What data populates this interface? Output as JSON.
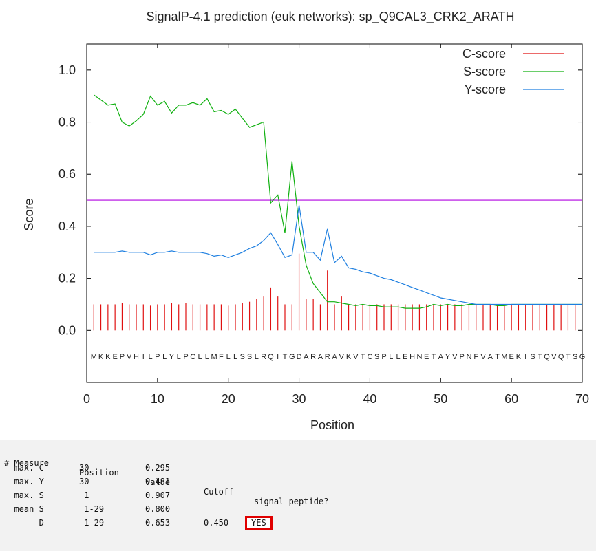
{
  "chart_data": {
    "type": "line",
    "title": "SignalP-4.1 prediction (euk networks): sp_Q9CAL3_CRK2_ARATH",
    "xlabel": "Position",
    "ylabel": "Score",
    "xlim": [
      0,
      70
    ],
    "ylim": [
      -0.2,
      1.1
    ],
    "x_ticks": [
      0,
      10,
      20,
      30,
      40,
      50,
      60,
      70
    ],
    "y_ticks": [
      0.0,
      0.2,
      0.4,
      0.6,
      0.8,
      1.0
    ],
    "y_tick_labels": [
      "0.0",
      "0.2",
      "0.4",
      "0.6",
      "0.8",
      "1.0"
    ],
    "grid": false,
    "legend_position": "top-right",
    "threshold": 0.5,
    "threshold_color": "#b000e0",
    "sequence": "MKKEPVHILPLYLPCLLMFLLSSLRQITGDARARAVKVTCSPLLEHNETAYVPNFVATMEKISTQVQTSG",
    "series": [
      {
        "name": "C-score",
        "style": "sticks",
        "color": "#e01010",
        "x": [
          1,
          2,
          3,
          4,
          5,
          6,
          7,
          8,
          9,
          10,
          11,
          12,
          13,
          14,
          15,
          16,
          17,
          18,
          19,
          20,
          21,
          22,
          23,
          24,
          25,
          26,
          27,
          28,
          29,
          30,
          31,
          32,
          33,
          34,
          35,
          36,
          37,
          38,
          39,
          40,
          41,
          42,
          43,
          44,
          45,
          46,
          47,
          48,
          49,
          50,
          51,
          52,
          53,
          54,
          55,
          56,
          57,
          58,
          59,
          60,
          61,
          62,
          63,
          64,
          65,
          66,
          67,
          68,
          69
        ],
        "y": [
          0.1,
          0.1,
          0.1,
          0.1,
          0.105,
          0.1,
          0.1,
          0.1,
          0.095,
          0.1,
          0.1,
          0.105,
          0.1,
          0.105,
          0.1,
          0.1,
          0.1,
          0.1,
          0.1,
          0.095,
          0.1,
          0.105,
          0.11,
          0.12,
          0.13,
          0.165,
          0.13,
          0.1,
          0.1,
          0.295,
          0.12,
          0.12,
          0.1,
          0.23,
          0.1,
          0.13,
          0.1,
          0.1,
          0.1,
          0.1,
          0.1,
          0.1,
          0.1,
          0.1,
          0.1,
          0.1,
          0.1,
          0.1,
          0.1,
          0.1,
          0.1,
          0.1,
          0.1,
          0.1,
          0.1,
          0.1,
          0.1,
          0.1,
          0.1,
          0.1,
          0.1,
          0.1,
          0.1,
          0.1,
          0.1,
          0.1,
          0.1,
          0.1,
          0.1
        ]
      },
      {
        "name": "S-score",
        "style": "line",
        "color": "#10b010",
        "x": [
          1,
          2,
          3,
          4,
          5,
          6,
          7,
          8,
          9,
          10,
          11,
          12,
          13,
          14,
          15,
          16,
          17,
          18,
          19,
          20,
          21,
          22,
          23,
          24,
          25,
          26,
          27,
          28,
          29,
          30,
          31,
          32,
          33,
          34,
          35,
          36,
          37,
          38,
          39,
          40,
          41,
          42,
          43,
          44,
          45,
          46,
          47,
          48,
          49,
          50,
          51,
          52,
          53,
          54,
          55,
          56,
          57,
          58,
          59,
          60,
          61,
          62,
          63,
          64,
          65,
          66,
          67,
          68,
          69,
          70
        ],
        "y": [
          0.905,
          0.885,
          0.865,
          0.87,
          0.8,
          0.785,
          0.805,
          0.83,
          0.9,
          0.865,
          0.88,
          0.835,
          0.865,
          0.865,
          0.875,
          0.865,
          0.89,
          0.84,
          0.845,
          0.83,
          0.85,
          0.815,
          0.78,
          0.79,
          0.8,
          0.49,
          0.52,
          0.375,
          0.65,
          0.4,
          0.25,
          0.18,
          0.145,
          0.11,
          0.11,
          0.105,
          0.1,
          0.095,
          0.1,
          0.095,
          0.095,
          0.09,
          0.09,
          0.09,
          0.085,
          0.085,
          0.085,
          0.09,
          0.1,
          0.095,
          0.1,
          0.095,
          0.095,
          0.1,
          0.1,
          0.1,
          0.1,
          0.095,
          0.095,
          0.1,
          0.1,
          0.1,
          0.1,
          0.1,
          0.1,
          0.1,
          0.1,
          0.1,
          0.1,
          0.1
        ]
      },
      {
        "name": "Y-score",
        "style": "line",
        "color": "#1e7fe0",
        "x": [
          1,
          2,
          3,
          4,
          5,
          6,
          7,
          8,
          9,
          10,
          11,
          12,
          13,
          14,
          15,
          16,
          17,
          18,
          19,
          20,
          21,
          22,
          23,
          24,
          25,
          26,
          27,
          28,
          29,
          30,
          31,
          32,
          33,
          34,
          35,
          36,
          37,
          38,
          39,
          40,
          41,
          42,
          43,
          44,
          45,
          46,
          47,
          48,
          49,
          50,
          51,
          52,
          53,
          54,
          55,
          56,
          57,
          58,
          59,
          60,
          61,
          62,
          63,
          64,
          65,
          66,
          67,
          68,
          69,
          70
        ],
        "y": [
          0.3,
          0.3,
          0.3,
          0.3,
          0.305,
          0.3,
          0.3,
          0.3,
          0.29,
          0.3,
          0.3,
          0.305,
          0.3,
          0.3,
          0.3,
          0.3,
          0.295,
          0.285,
          0.29,
          0.28,
          0.29,
          0.3,
          0.315,
          0.325,
          0.345,
          0.375,
          0.33,
          0.28,
          0.29,
          0.481,
          0.3,
          0.3,
          0.27,
          0.39,
          0.26,
          0.285,
          0.24,
          0.235,
          0.225,
          0.22,
          0.21,
          0.2,
          0.195,
          0.185,
          0.175,
          0.165,
          0.155,
          0.145,
          0.135,
          0.125,
          0.12,
          0.115,
          0.11,
          0.105,
          0.1,
          0.1,
          0.1,
          0.1,
          0.1,
          0.1,
          0.1,
          0.1,
          0.1,
          0.1,
          0.1,
          0.1,
          0.1,
          0.1,
          0.1,
          0.1
        ]
      }
    ]
  },
  "results": {
    "header": {
      "measure": "# Measure",
      "position": "Position",
      "value": "Value",
      "cutoff": "Cutoff",
      "signal": "signal peptide?"
    },
    "rows": [
      {
        "measure": "  max. C",
        "position": "30",
        "value": "0.295",
        "cutoff": "",
        "signal": ""
      },
      {
        "measure": "  max. Y",
        "position": "30",
        "value": "0.481",
        "cutoff": "",
        "signal": ""
      },
      {
        "measure": "  max. S",
        "position": " 1",
        "value": "0.907",
        "cutoff": "",
        "signal": ""
      },
      {
        "measure": "  mean S",
        "position": " 1-29",
        "value": "0.800",
        "cutoff": "",
        "signal": ""
      },
      {
        "measure": "       D",
        "position": " 1-29",
        "value": "0.653",
        "cutoff": "0.450",
        "signal": "YES"
      }
    ]
  }
}
